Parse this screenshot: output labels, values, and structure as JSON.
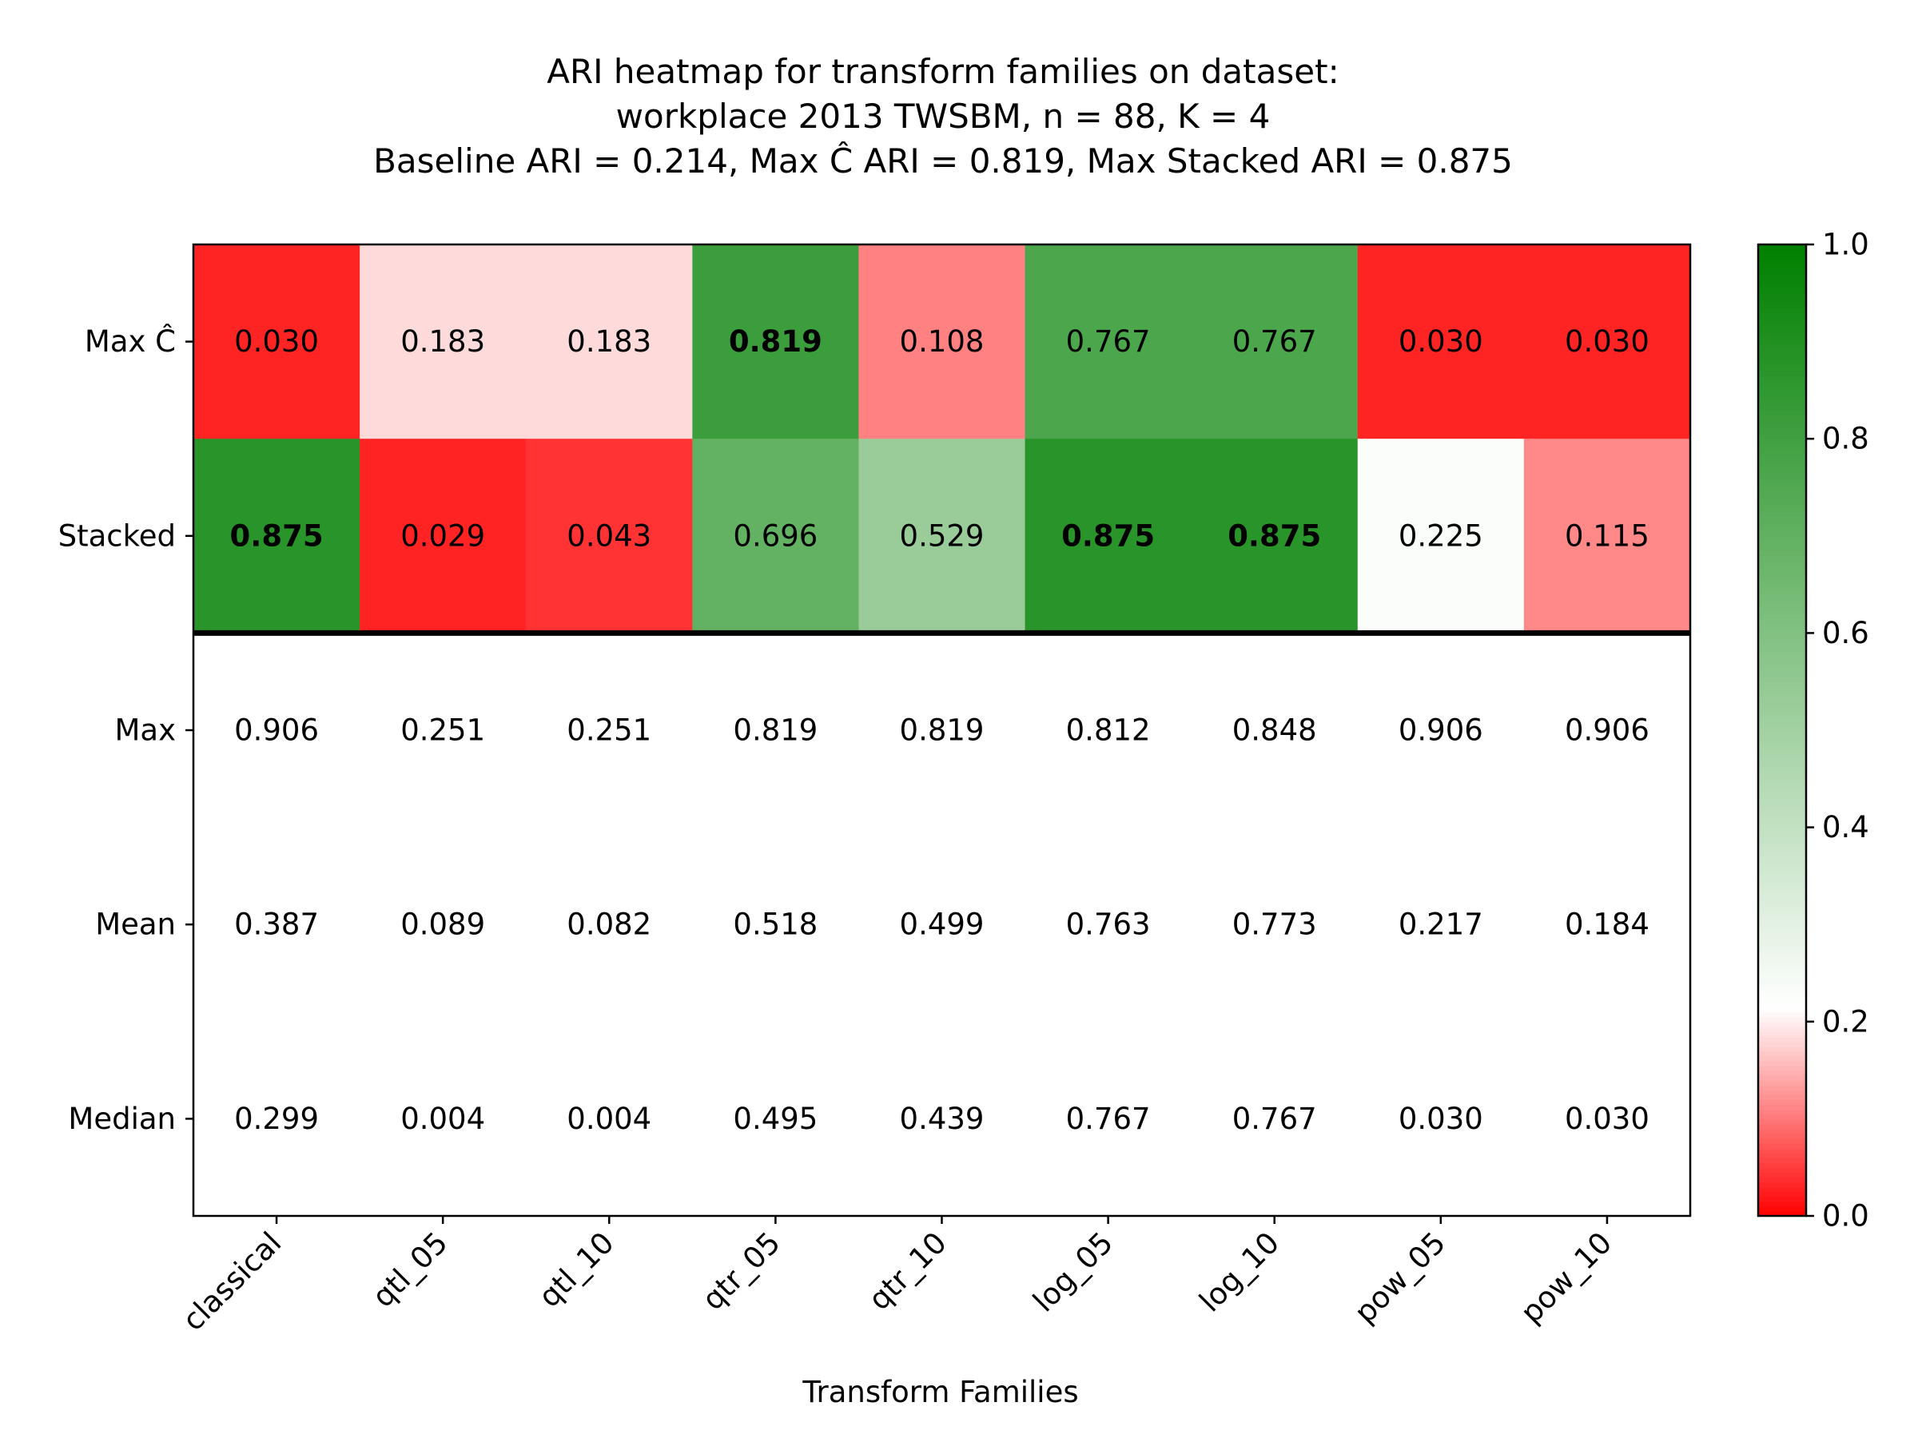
{
  "chart_data": {
    "type": "heatmap",
    "title_lines": [
      "ARI heatmap for transform families on dataset:",
      "workplace 2013 TWSBM, n = 88, K = 4",
      "Baseline ARI = 0.214, Max Ĉ ARI = 0.819, Max Stacked ARI = 0.875"
    ],
    "xlabel": "Transform Families",
    "ylabel": "",
    "x_categories": [
      "classical",
      "qtl_05",
      "qtl_10",
      "qtr_05",
      "qtr_10",
      "log_05",
      "log_10",
      "pow_05",
      "pow_10"
    ],
    "rows": [
      {
        "label": "Max Ĉ",
        "colored": true,
        "values": [
          0.03,
          0.183,
          0.183,
          0.819,
          0.108,
          0.767,
          0.767,
          0.03,
          0.03
        ],
        "display": [
          "0.030",
          "0.183",
          "0.183",
          "0.819",
          "0.108",
          "0.767",
          "0.767",
          "0.030",
          "0.030"
        ],
        "bold": [
          false,
          false,
          false,
          true,
          false,
          false,
          false,
          false,
          false
        ]
      },
      {
        "label": "Stacked",
        "colored": true,
        "values": [
          0.875,
          0.029,
          0.043,
          0.696,
          0.529,
          0.875,
          0.875,
          0.225,
          0.115
        ],
        "display": [
          "0.875",
          "0.029",
          "0.043",
          "0.696",
          "0.529",
          "0.875",
          "0.875",
          "0.225",
          "0.115"
        ],
        "bold": [
          true,
          false,
          false,
          false,
          false,
          true,
          true,
          false,
          false
        ]
      },
      {
        "label": "Max",
        "colored": false,
        "values": [
          0.906,
          0.251,
          0.251,
          0.819,
          0.819,
          0.812,
          0.848,
          0.906,
          0.906
        ],
        "display": [
          "0.906",
          "0.251",
          "0.251",
          "0.819",
          "0.819",
          "0.812",
          "0.848",
          "0.906",
          "0.906"
        ],
        "bold": [
          false,
          false,
          false,
          false,
          false,
          false,
          false,
          false,
          false
        ]
      },
      {
        "label": "Mean",
        "colored": false,
        "values": [
          0.387,
          0.089,
          0.082,
          0.518,
          0.499,
          0.763,
          0.773,
          0.217,
          0.184
        ],
        "display": [
          "0.387",
          "0.089",
          "0.082",
          "0.518",
          "0.499",
          "0.763",
          "0.773",
          "0.217",
          "0.184"
        ],
        "bold": [
          false,
          false,
          false,
          false,
          false,
          false,
          false,
          false,
          false
        ]
      },
      {
        "label": "Median",
        "colored": false,
        "values": [
          0.299,
          0.004,
          0.004,
          0.495,
          0.439,
          0.767,
          0.767,
          0.03,
          0.03
        ],
        "display": [
          "0.299",
          "0.004",
          "0.004",
          "0.495",
          "0.439",
          "0.767",
          "0.767",
          "0.030",
          "0.030"
        ],
        "bold": [
          false,
          false,
          false,
          false,
          false,
          false,
          false,
          false,
          false
        ]
      }
    ],
    "colormap": {
      "min": 0.0,
      "max": 1.0,
      "center": 0.214,
      "stops": [
        "#ff0000",
        "#ffffff",
        "#008000"
      ],
      "ticks": [
        0.0,
        0.2,
        0.4,
        0.6,
        0.8,
        1.0
      ],
      "tick_labels": [
        "0.0",
        "0.2",
        "0.4",
        "0.6",
        "0.8",
        "1.0"
      ]
    },
    "separator_after_row": 2
  }
}
